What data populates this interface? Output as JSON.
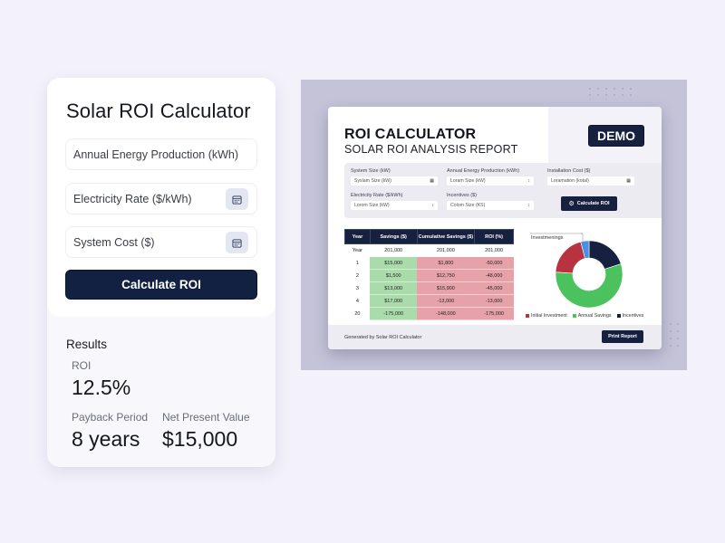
{
  "calculator": {
    "title": "Solar ROI Calculator",
    "fields": [
      {
        "placeholder": "Annual Energy Production (kWh)",
        "icon": null
      },
      {
        "placeholder": "Electricity Rate ($/kWh)",
        "icon": "calendar-icon"
      },
      {
        "placeholder": "System Cost ($)",
        "icon": "calendar-icon"
      }
    ],
    "button_label": "Calculate ROI"
  },
  "results": {
    "title": "Results",
    "roi_label": "ROI",
    "roi_value": "12.5%",
    "payback_label": "Payback Period",
    "payback_value": "8 years",
    "npv_label": "Net Present Value",
    "npv_value": "$15,000"
  },
  "report": {
    "title": "ROI CALCULATOR",
    "subtitle": "SOLAR ROI ANALYSIS REPORT",
    "badge": "DEMO",
    "form": {
      "system_size": {
        "label": "System Size (kW)",
        "value": "Syslam Size (kW)",
        "icon": "calendar-icon"
      },
      "annual_energy": {
        "label": "Annual Energy Production (kWh)",
        "value": "Loram Size (kW)",
        "icon": "stepper-icon"
      },
      "installation_cost": {
        "label": "Installation Cost ($)",
        "value": "Loramation (kotal)",
        "icon": "calendar-icon"
      },
      "electricity_rate": {
        "label": "Electricity Rate ($/kWh)",
        "value": "Lorom Size (kW)",
        "icon": "stepper-icon"
      },
      "incentives": {
        "label": "Incentives ($)",
        "value": "Colom Size (KS)",
        "icon": "stepper-icon"
      },
      "calculate_label": "Calculate ROI"
    },
    "table": {
      "headers": [
        "Year",
        "Savings ($)",
        "Cumulative Savings ($)",
        "ROI (%)"
      ],
      "rows": [
        [
          "Year",
          "201,000",
          "201,000",
          "201,000"
        ],
        [
          "1",
          "$15,000",
          "$1,800",
          "-50,000"
        ],
        [
          "2",
          "$1,500",
          "$12,750",
          "-48,000"
        ],
        [
          "3",
          "$13,000",
          "$15,900",
          "-45,000"
        ],
        [
          "4",
          "$17,000",
          "-13,000",
          "-13,000"
        ],
        [
          "20",
          "-175,000",
          "-148,000",
          "-175,000"
        ]
      ]
    },
    "footer_text": "Generated by Solar ROI Calculator",
    "print_label": "Print Report"
  },
  "colors": {
    "navy": "#16203f",
    "green": "#4cc25e",
    "red": "#b8333f",
    "blue": "#4a90e2"
  },
  "chart_data": {
    "type": "pie",
    "title": "",
    "callout": "Investmenings",
    "categories": [
      "Initial Investment",
      "Annual Savings",
      "Incentives",
      "Investments"
    ],
    "values": [
      20,
      56,
      20,
      4
    ],
    "colors": [
      "#b8333f",
      "#4cc25e",
      "#16203f",
      "#4a90e2"
    ],
    "legend": [
      "Initial Investment",
      "Annual Savings",
      "Incentives"
    ],
    "legend_position": "bottom"
  }
}
